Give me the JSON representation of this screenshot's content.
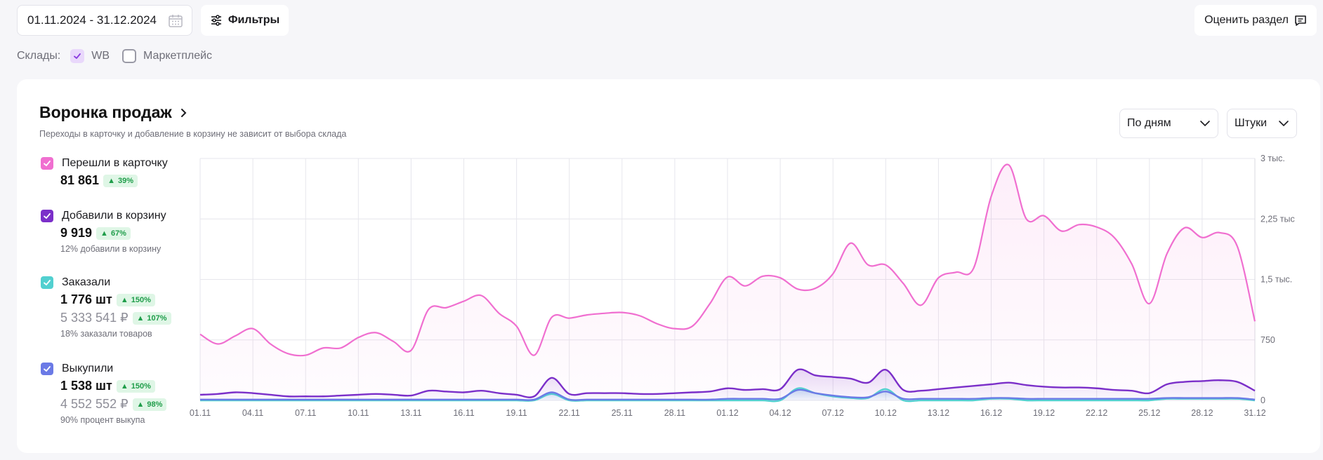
{
  "topbar": {
    "date_range": "01.11.2024 - 31.12.2024",
    "filters_label": "Фильтры",
    "rate_label": "Оценить раздел"
  },
  "warehouses": {
    "label": "Склады:",
    "options": [
      {
        "label": "WB",
        "checked": true
      },
      {
        "label": "Маркетплейс",
        "checked": false
      }
    ]
  },
  "funnel": {
    "title": "Воронка продаж",
    "subtitle": "Переходы в карточку и добавление в корзину не зависит от выбора склада",
    "period_select": "По дням",
    "units_select": "Штуки",
    "legend": [
      {
        "label": "Перешли в карточку",
        "value": "81 861",
        "badge": "39%",
        "color": "#f06fd0"
      },
      {
        "label": "Добавили в корзину",
        "value": "9 919",
        "badge": "67%",
        "note": "12% добавили в корзину",
        "color": "#7b2fc9"
      },
      {
        "label": "Заказали",
        "value": "1 776 шт",
        "badge": "150%",
        "value2": "5 333 541 ₽",
        "badge2": "107%",
        "note": "18% заказали товаров",
        "color": "#52d0d0"
      },
      {
        "label": "Выкупили",
        "value": "1 538 шт",
        "badge": "150%",
        "value2": "4 552 552 ₽",
        "badge2": "98%",
        "note": "90% процент выкупа",
        "color": "#6b7ae6"
      }
    ]
  },
  "chart_data": {
    "type": "line",
    "x_ticks": [
      "01.11",
      "04.11",
      "07.11",
      "10.11",
      "13.11",
      "16.11",
      "19.11",
      "22.11",
      "25.11",
      "28.11",
      "01.12",
      "04.12",
      "07.12",
      "10.12",
      "13.12",
      "16.12",
      "19.12",
      "22.12",
      "25.12",
      "28.12",
      "31.12"
    ],
    "y_ticks": [
      "0",
      "750",
      "1,5 тыс.",
      "2,25 тыс",
      "3 тыс."
    ],
    "ylim": [
      0,
      3000
    ],
    "series": [
      {
        "name": "Перешли в карточку",
        "color": "#f06fd0",
        "values": [
          820,
          700,
          800,
          890,
          700,
          580,
          560,
          650,
          650,
          780,
          840,
          730,
          620,
          1130,
          1150,
          1230,
          1300,
          1080,
          920,
          560,
          1030,
          1020,
          1060,
          1080,
          1090,
          1050,
          950,
          890,
          920,
          1200,
          1530,
          1420,
          1540,
          1520,
          1380,
          1390,
          1570,
          1950,
          1680,
          1680,
          1450,
          1180,
          1520,
          1590,
          1640,
          2530,
          2920,
          2250,
          2290,
          2100,
          2180,
          2150,
          2020,
          1690,
          1200,
          1820,
          2140,
          2020,
          2080,
          1910,
          980
        ]
      },
      {
        "name": "Добавили в корзину",
        "color": "#7b2fc9",
        "values": [
          70,
          80,
          100,
          90,
          70,
          50,
          50,
          50,
          60,
          70,
          80,
          70,
          60,
          120,
          110,
          100,
          120,
          90,
          70,
          50,
          280,
          80,
          90,
          90,
          90,
          80,
          80,
          90,
          100,
          110,
          150,
          130,
          140,
          140,
          380,
          310,
          290,
          270,
          220,
          380,
          130,
          120,
          140,
          160,
          180,
          200,
          220,
          190,
          170,
          160,
          160,
          150,
          130,
          120,
          90,
          200,
          230,
          240,
          250,
          230,
          120
        ]
      },
      {
        "name": "Заказали",
        "color": "#52d0d0",
        "values": [
          0,
          0,
          0,
          0,
          0,
          0,
          0,
          0,
          0,
          0,
          0,
          0,
          0,
          0,
          0,
          0,
          0,
          0,
          0,
          0,
          80,
          0,
          0,
          0,
          0,
          0,
          0,
          0,
          0,
          0,
          0,
          0,
          0,
          0,
          150,
          90,
          50,
          30,
          30,
          140,
          0,
          0,
          0,
          0,
          0,
          20,
          20,
          0,
          0,
          0,
          0,
          0,
          0,
          0,
          0,
          20,
          20,
          20,
          20,
          20,
          0
        ]
      },
      {
        "name": "Выкупили",
        "color": "#6b7ae6",
        "values": [
          10,
          10,
          10,
          10,
          10,
          10,
          10,
          10,
          10,
          10,
          10,
          10,
          10,
          10,
          10,
          10,
          10,
          10,
          10,
          10,
          100,
          10,
          10,
          10,
          10,
          10,
          10,
          10,
          10,
          10,
          20,
          20,
          20,
          20,
          130,
          90,
          60,
          40,
          40,
          110,
          20,
          20,
          20,
          20,
          20,
          30,
          30,
          20,
          20,
          20,
          20,
          20,
          20,
          20,
          20,
          30,
          30,
          30,
          30,
          30,
          10
        ]
      }
    ]
  }
}
